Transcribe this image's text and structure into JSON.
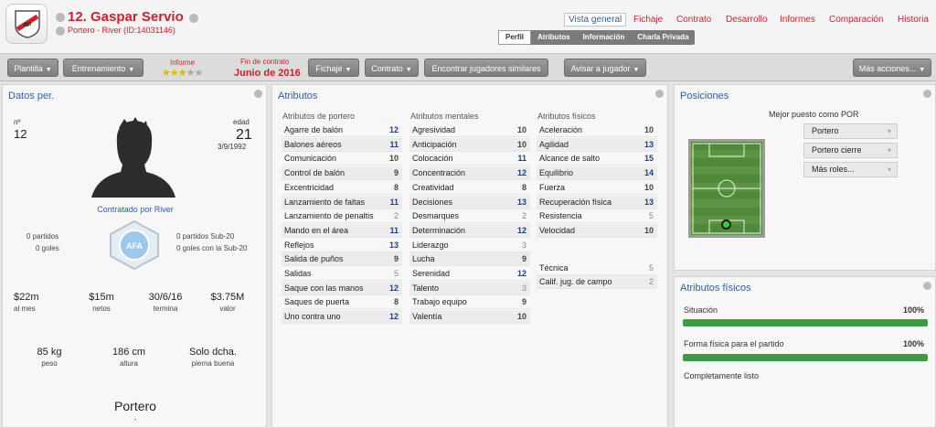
{
  "header": {
    "player_name": "12. Gaspar Servio",
    "subtitle": "Portero - River (ID:14031146)",
    "nav": [
      "Vista general",
      "Fichaje",
      "Contrato",
      "Desarrollo",
      "Informes",
      "Comparación",
      "Historia"
    ],
    "subtabs": [
      "Perfil",
      "Atributos",
      "Información",
      "Charla Privada"
    ]
  },
  "toolbar": {
    "plantilla": "Plantilla",
    "entrenamiento": "Entrenamiento",
    "informe_label": "Informe",
    "stars_filled": 2.5,
    "stars_total": 5,
    "contract_label": "Fin de contrato",
    "contract_value": "Junio de 2016",
    "fichaje": "Fichaje",
    "contrato": "Contrato",
    "encontrar": "Encontrar jugadores similares",
    "avisar": "Avisar a jugador",
    "mas": "Más acciones..."
  },
  "personal": {
    "title": "Datos per.",
    "num_label": "nº",
    "num": "12",
    "age_label": "edad",
    "age": "21",
    "dob": "3/9/1992",
    "contracted": "Contratado por River",
    "left_matches": "0 partidos",
    "left_goals": "0 goles",
    "right_matches": "0 partidos Sub-20",
    "right_goals": "0 goles con la Sub-20",
    "money": [
      {
        "value": "$22m",
        "label": "al mes"
      },
      {
        "value": "$15m",
        "label": "netos"
      },
      {
        "value": "30/6/16",
        "label": "termina"
      },
      {
        "value": "$3.75M",
        "label": "valor"
      }
    ],
    "body": [
      {
        "value": "85 kg",
        "label": "peso"
      },
      {
        "value": "186 cm",
        "label": "altura"
      },
      {
        "value": "Solo dcha.",
        "label": "pierna buena"
      }
    ],
    "position": "Portero",
    "position_sub": "-"
  },
  "attributes": {
    "title": "Atributos",
    "columns": [
      {
        "header": "Atributos de portero",
        "items": [
          {
            "name": "Agarre de balón",
            "value": "12"
          },
          {
            "name": "Balones aéreos",
            "value": "11"
          },
          {
            "name": "Comunicación",
            "value": "10"
          },
          {
            "name": "Control de balón",
            "value": "9"
          },
          {
            "name": "Excentricidad",
            "value": "8"
          },
          {
            "name": "Lanzamiento de faltas",
            "value": "11"
          },
          {
            "name": "Lanzamiento de penaltis",
            "value": "2"
          },
          {
            "name": "Mando en el área",
            "value": "11"
          },
          {
            "name": "Reflejos",
            "value": "13"
          },
          {
            "name": "Salida de puños",
            "value": "9"
          },
          {
            "name": "Salidas",
            "value": "5"
          },
          {
            "name": "Saque con las manos",
            "value": "12"
          },
          {
            "name": "Saques de puerta",
            "value": "8"
          },
          {
            "name": "Uno contra uno",
            "value": "12"
          }
        ]
      },
      {
        "header": "Atributos mentales",
        "items": [
          {
            "name": "Agresividad",
            "value": "10"
          },
          {
            "name": "Anticipación",
            "value": "10"
          },
          {
            "name": "Colocación",
            "value": "11"
          },
          {
            "name": "Concentración",
            "value": "12"
          },
          {
            "name": "Creatividad",
            "value": "8"
          },
          {
            "name": "Decisiones",
            "value": "13"
          },
          {
            "name": "Desmarques",
            "value": "2"
          },
          {
            "name": "Determinación",
            "value": "12"
          },
          {
            "name": "Liderazgo",
            "value": "3"
          },
          {
            "name": "Lucha",
            "value": "9"
          },
          {
            "name": "Serenidad",
            "value": "12"
          },
          {
            "name": "Talento",
            "value": "3"
          },
          {
            "name": "Trabajo equipo",
            "value": "9"
          },
          {
            "name": "Valentía",
            "value": "10"
          }
        ]
      },
      {
        "header": "Atributos físicos",
        "items": [
          {
            "name": "Aceleración",
            "value": "10"
          },
          {
            "name": "Agilidad",
            "value": "13"
          },
          {
            "name": "Alcance de salto",
            "value": "15"
          },
          {
            "name": "Equilibrio",
            "value": "14"
          },
          {
            "name": "Fuerza",
            "value": "10"
          },
          {
            "name": "Recuperación física",
            "value": "13"
          },
          {
            "name": "Resistencia",
            "value": "5"
          },
          {
            "name": "Velocidad",
            "value": "10"
          }
        ]
      }
    ],
    "extra": [
      {
        "name": "Técnica",
        "value": "5"
      },
      {
        "name": "Calif. jug. de campo",
        "value": "2"
      }
    ]
  },
  "positions": {
    "title": "Posiciones",
    "best_label": "Mejor puesto como POR",
    "dropdowns": [
      "Portero",
      "Portero cierre",
      "Más roles..."
    ]
  },
  "physical": {
    "title": "Atributos físicos",
    "situation_label": "Situación",
    "situation_value": "100%",
    "situation_fraction": 1.0,
    "fitness_label": "Forma física para el partido",
    "fitness_value": "100%",
    "fitness_fraction": 1.0,
    "status": "Completamente listo"
  },
  "colors": {
    "accent_red": "#d2202a",
    "accent_blue": "#2a5fa8",
    "bar_green": "#3f9a44"
  }
}
